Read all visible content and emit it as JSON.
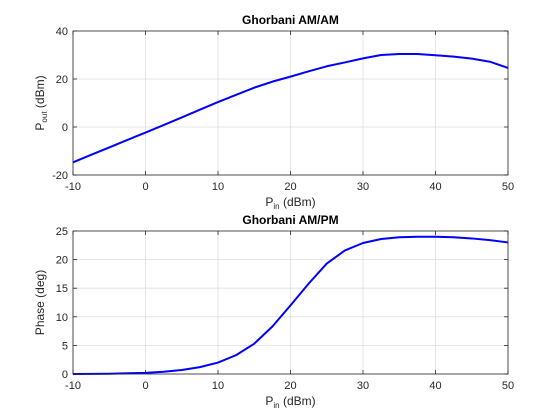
{
  "chart_data": [
    {
      "type": "line",
      "title": "Ghorbani AM/AM",
      "xlabel": {
        "main": "P",
        "sub": "in",
        "rest": "  (dBm)"
      },
      "ylabel": {
        "main": "P",
        "sub": "out",
        "rest": "  (dBm)"
      },
      "xlim": [
        -10,
        50
      ],
      "ylim": [
        -20,
        40
      ],
      "xticks": [
        -10,
        0,
        10,
        20,
        30,
        40,
        50
      ],
      "yticks": [
        -20,
        0,
        20,
        40
      ],
      "grid": true,
      "color": "#0000ff",
      "x": [
        -10,
        -7.5,
        -5,
        -2.5,
        0,
        2.5,
        5,
        7.5,
        10,
        12.5,
        15,
        17.5,
        20,
        22.5,
        25,
        27.5,
        30,
        32.5,
        35,
        37.5,
        40,
        42.5,
        45,
        47.5,
        50
      ],
      "y": [
        -14.7,
        -11.6,
        -8.5,
        -5.4,
        -2.3,
        0.8,
        4.0,
        7.2,
        10.4,
        13.4,
        16.4,
        18.9,
        21.0,
        23.2,
        25.3,
        26.9,
        28.6,
        30.0,
        30.4,
        30.4,
        29.9,
        29.3,
        28.5,
        27.2,
        24.6
      ]
    },
    {
      "type": "line",
      "title": "Ghorbani AM/PM",
      "xlabel": {
        "main": "P",
        "sub": "in",
        "rest": "  (dBm)"
      },
      "ylabel": {
        "main": "Phase (deg)",
        "sub": "",
        "rest": ""
      },
      "xlim": [
        -10,
        50
      ],
      "ylim": [
        0,
        25
      ],
      "xticks": [
        -10,
        0,
        10,
        20,
        30,
        40,
        50
      ],
      "yticks": [
        0,
        5,
        10,
        15,
        20,
        25
      ],
      "grid": true,
      "color": "#0000ff",
      "x": [
        -10,
        -5,
        0,
        2.5,
        5,
        7.5,
        10,
        12.5,
        15,
        17.5,
        20,
        22.5,
        25,
        27.5,
        30,
        32.5,
        35,
        37.5,
        40,
        42.5,
        45,
        47.5,
        50
      ],
      "y": [
        0.0,
        0.05,
        0.2,
        0.4,
        0.7,
        1.2,
        2.0,
        3.3,
        5.3,
        8.3,
        12.0,
        15.8,
        19.3,
        21.6,
        22.9,
        23.6,
        23.9,
        24.0,
        24.0,
        23.9,
        23.7,
        23.4,
        23.0
      ]
    }
  ]
}
